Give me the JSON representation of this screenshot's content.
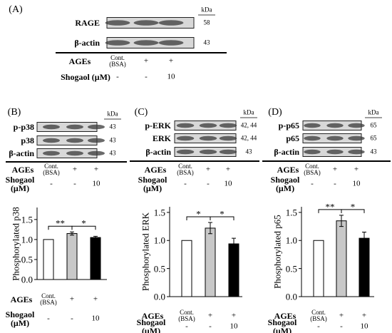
{
  "blot_panels": [
    {
      "label": "(A)",
      "kda_header": "kDa",
      "blots": [
        {
          "name": "RAGE",
          "kda": "58"
        },
        {
          "name": "β-actin",
          "kda": "43"
        }
      ],
      "row1_label": "AGEs",
      "row1": [
        "Cont.\n(BSA)",
        "+",
        "+"
      ],
      "row2_label": "Shogaol (μM)",
      "row2": [
        "-",
        "-",
        "10"
      ]
    },
    {
      "label": "(B)",
      "kda_header": "kDa",
      "blots": [
        {
          "name": "p-p38",
          "kda": "43"
        },
        {
          "name": "p38",
          "kda": "43"
        },
        {
          "name": "β-actin",
          "kda": "43"
        }
      ],
      "row1_label": "AGEs",
      "row1": [
        "Cont.\n(BSA)",
        "+",
        "+"
      ],
      "row2_label": "Shogaol\n(μM)",
      "row2": [
        "-",
        "-",
        "10"
      ]
    },
    {
      "label": "(C)",
      "kda_header": "kDa",
      "blots": [
        {
          "name": "p-ERK",
          "kda": "42, 44"
        },
        {
          "name": "ERK",
          "kda": "42, 44"
        },
        {
          "name": "β-actin",
          "kda": "43"
        }
      ],
      "row1_label": "AGEs",
      "row1": [
        "Cont.\n(BSA)",
        "+",
        "+"
      ],
      "row2_label": "Shogaol\n(μM)",
      "row2": [
        "-",
        "-",
        "10"
      ]
    },
    {
      "label": "(D)",
      "kda_header": "kDa",
      "blots": [
        {
          "name": "p-p65",
          "kda": "65"
        },
        {
          "name": "p65",
          "kda": "65"
        },
        {
          "name": "β-actin",
          "kda": "43"
        }
      ],
      "row1_label": "AGEs",
      "row1": [
        "Cont.\n(BSA)",
        "+",
        "+"
      ],
      "row2_label": "Shogaol\n(μM)",
      "row2": [
        "-",
        "-",
        "10"
      ]
    }
  ],
  "chart_data": [
    {
      "type": "bar",
      "ylabel": "Phosphorylated p38",
      "categories": [
        "Cont.\n(BSA)",
        "+",
        "+"
      ],
      "category_row_label": "AGEs",
      "second_row_label": "Shogaol\n(μM)",
      "second_row": [
        "-",
        "-",
        "10"
      ],
      "values": [
        1.0,
        1.15,
        1.05
      ],
      "errors": [
        0,
        0.04,
        0.03
      ],
      "colors": [
        "#ffffff",
        "#c8c8c8",
        "#000000"
      ],
      "ylim": [
        0,
        1.8
      ],
      "yticks": [
        {
          "value": 0,
          "label": "0.0"
        },
        0.5,
        {
          "value": 1,
          "label": "1.0"
        },
        1.5
      ],
      "annotations": [
        "**",
        "*"
      ]
    },
    {
      "type": "bar",
      "ylabel": "Phosphorylated ERK",
      "categories": [
        "Cont.\n(BSA)",
        "+",
        "+"
      ],
      "category_row_label": "AGEs",
      "second_row_label": "Shogaol\n(μM)",
      "second_row": [
        "-",
        "-",
        "10"
      ],
      "values": [
        1.0,
        1.22,
        0.94
      ],
      "errors": [
        0,
        0.1,
        0.1
      ],
      "colors": [
        "#ffffff",
        "#c8c8c8",
        "#000000"
      ],
      "ylim": [
        0,
        1.6
      ],
      "yticks": [
        {
          "value": 0,
          "label": "0.0"
        },
        0.5,
        {
          "value": 1,
          "label": "1.0"
        },
        1.5
      ],
      "annotations": [
        "*",
        "*"
      ]
    },
    {
      "type": "bar",
      "ylabel": "Phosphorylated p65",
      "categories": [
        "Cont.\n(BSA)",
        "+",
        "+"
      ],
      "category_row_label": "AGEs",
      "second_row_label": "Shogaol\n(μM)",
      "second_row": [
        "-",
        "-",
        "10"
      ],
      "values": [
        1.0,
        1.35,
        1.04
      ],
      "errors": [
        0,
        0.1,
        0.11
      ],
      "colors": [
        "#ffffff",
        "#c8c8c8",
        "#000000"
      ],
      "ylim": [
        0,
        1.6
      ],
      "yticks": [
        {
          "value": 0,
          "label": "0.0"
        },
        0.5,
        {
          "value": 1,
          "label": "1.0"
        },
        1.5
      ],
      "annotations": [
        "**",
        "*"
      ]
    }
  ]
}
